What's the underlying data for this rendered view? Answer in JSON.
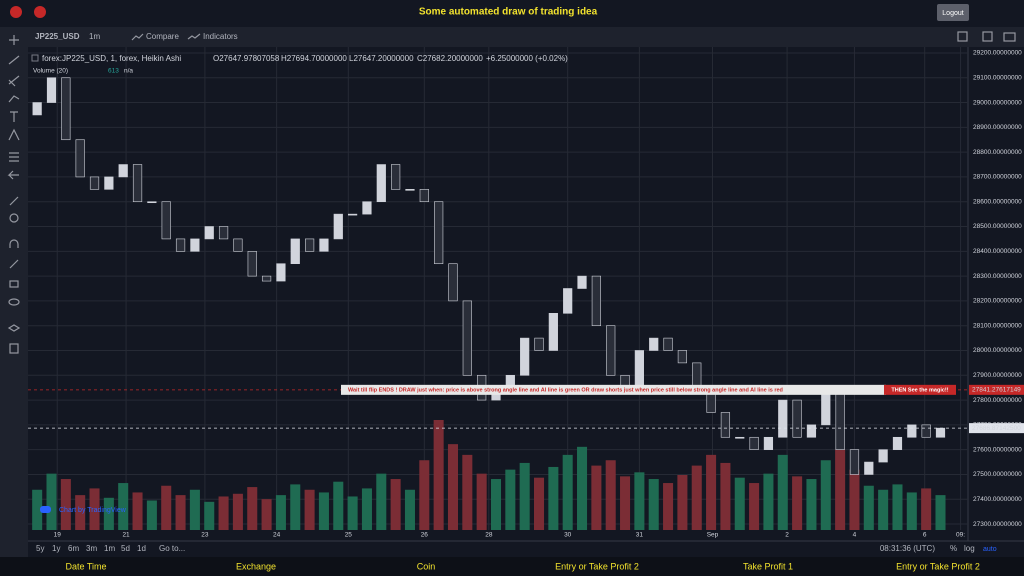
{
  "header": {
    "title": "Some automated draw of trading idea",
    "logout": "Logout"
  },
  "toolbar": {
    "symbol": "JP225_USD",
    "interval": "1m",
    "compare": "Compare",
    "indicators": "Indicators"
  },
  "legend": {
    "name": "forex:JP225_USD, 1, forex, Heikin Ashi",
    "open": "O27647.97807058",
    "high": "H27694.70000000",
    "low": "L27647.20000000",
    "close": "C27682.20000000",
    "change": "+6.25000000 (+0.02%)",
    "volume": "Volume (20)",
    "volume_value": "613",
    "volume_na": "n/a"
  },
  "chart_data": {
    "type": "candlestick",
    "first_open": 28950,
    "values": [
      29000,
      29100,
      28850,
      28700,
      28650,
      28700,
      28750,
      28600,
      28600,
      28450,
      28400,
      28450,
      28500,
      28450,
      28400,
      28300,
      28280,
      28350,
      28450,
      28400,
      28450,
      28550,
      28550,
      28600,
      28750,
      28650,
      28650,
      28600,
      28350,
      28200,
      27900,
      27800,
      27850,
      27900,
      28050,
      28000,
      28150,
      28250,
      28300,
      28100,
      27900,
      27850,
      28000,
      28050,
      28000,
      27950,
      27850,
      27750,
      27650,
      27650,
      27600,
      27650,
      27800,
      27650,
      27700,
      27850,
      27600,
      27500,
      27550,
      27600,
      27650,
      27700,
      27650,
      27686.87
    ],
    "volumes": [
      300,
      420,
      380,
      260,
      310,
      240,
      350,
      280,
      220,
      330,
      260,
      300,
      210,
      250,
      270,
      320,
      230,
      260,
      340,
      300,
      280,
      360,
      250,
      310,
      420,
      380,
      300,
      520,
      820,
      640,
      560,
      420,
      380,
      450,
      500,
      390,
      470,
      560,
      620,
      480,
      520,
      400,
      430,
      380,
      350,
      410,
      480,
      560,
      500,
      390,
      350,
      420,
      560,
      400,
      380,
      520,
      600,
      450,
      330,
      300,
      340,
      280,
      310,
      260
    ],
    "up_color": "#d1d4dc",
    "down_color": "#2a2e39",
    "vol_up": "#1f6b52",
    "vol_down": "#7b2d35",
    "ylim": [
      27276,
      29220
    ],
    "xlim": [
      -0.5,
      64.5
    ],
    "yticks": [
      {
        "value": 29200,
        "label": "29200.00000000"
      },
      {
        "value": 29100,
        "label": "29100.00000000"
      },
      {
        "value": 29000,
        "label": "29000.00000000"
      },
      {
        "value": 28900,
        "label": "28900.00000000"
      },
      {
        "value": 28800,
        "label": "28800.00000000"
      },
      {
        "value": 28700,
        "label": "28700.00000000"
      },
      {
        "value": 28600,
        "label": "28600.00000000"
      },
      {
        "value": 28500,
        "label": "28500.00000000"
      },
      {
        "value": 28400,
        "label": "28400.00000000"
      },
      {
        "value": 28300,
        "label": "28300.00000000"
      },
      {
        "value": 28200,
        "label": "28200.00000000"
      },
      {
        "value": 28100,
        "label": "28100.00000000"
      },
      {
        "value": 28000,
        "label": "28000.00000000"
      },
      {
        "value": 27900,
        "label": "27900.00000000"
      },
      {
        "value": 27800,
        "label": "27800.00000000"
      },
      {
        "value": 27700,
        "label": "27700.00000000"
      },
      {
        "value": 27600,
        "label": "27600.00000000"
      },
      {
        "value": 27500,
        "label": "27500.00000000"
      },
      {
        "value": 27400,
        "label": "27400.00000000"
      },
      {
        "value": 27300,
        "label": "27300.00000000"
      }
    ],
    "xticks": [
      {
        "value": 1.4,
        "label": "19"
      },
      {
        "value": 6.2,
        "label": "21"
      },
      {
        "value": 11.7,
        "label": "23"
      },
      {
        "value": 16.7,
        "label": "24"
      },
      {
        "value": 21.7,
        "label": "25"
      },
      {
        "value": 27,
        "label": "26"
      },
      {
        "value": 31.5,
        "label": "28"
      },
      {
        "value": 37,
        "label": "30"
      },
      {
        "value": 42,
        "label": "31"
      },
      {
        "value": 47.1,
        "label": "Sep"
      },
      {
        "value": 52.3,
        "label": "2"
      },
      {
        "value": 57,
        "label": "4"
      },
      {
        "value": 61.9,
        "label": "6"
      },
      {
        "value": 64.4,
        "label": "09:"
      }
    ],
    "grid": true,
    "markers": [
      {
        "value": 27841.27617149,
        "label": "27841.27617149",
        "color": "#c62828"
      },
      {
        "value": 27686.871425,
        "label": "27686.87142500",
        "color": "#e0e3eb"
      }
    ],
    "annotation": "Wait till flip ENDS !   DRAW just when:  price is above strong angle line and AI line is green       OR        draw shorts just when price still below strong angle line and AI line is red",
    "annotation_end": "THEN See the magic!!",
    "watermark": "Chart by TradingView"
  },
  "footer": {
    "ranges": [
      "5y",
      "1y",
      "6m",
      "3m",
      "1m",
      "5d",
      "1d",
      "Go to..."
    ],
    "time": "08:31:36 (UTC)",
    "percent": "%",
    "log": "log",
    "auto": "auto"
  },
  "nav": [
    "Date Time",
    "Exchange",
    "Coin",
    "Entry or Take Profit 2",
    "Take Profit 1",
    "Entry or Take Profit 2"
  ]
}
